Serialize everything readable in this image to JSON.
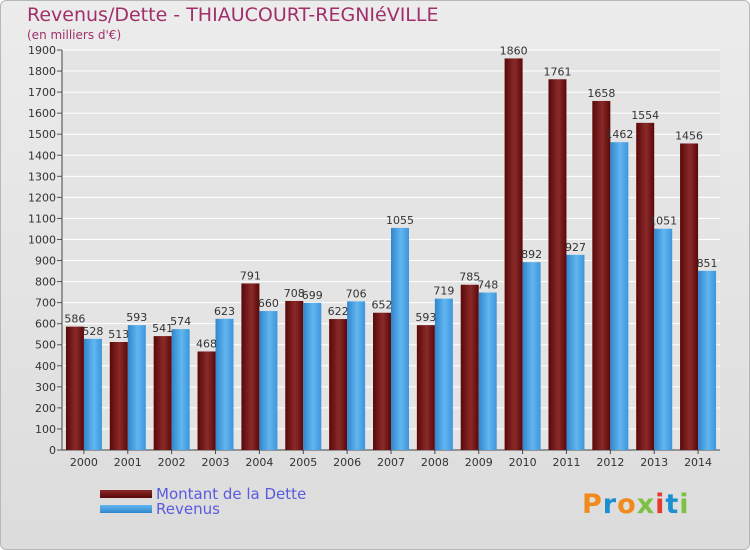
{
  "chart_data": {
    "type": "bar",
    "title": "Revenus/Dette - THIAUCOURT-REGNIéVILLE",
    "subtitle": "(en milliers d'€)",
    "categories": [
      "2000",
      "2001",
      "2002",
      "2003",
      "2004",
      "2005",
      "2006",
      "2007",
      "2008",
      "2009",
      "2010",
      "2011",
      "2012",
      "2013",
      "2014"
    ],
    "series": [
      {
        "name": "Montant de la Dette",
        "color": "#7a1010",
        "values": [
          586,
          513,
          541,
          468,
          791,
          708,
          622,
          652,
          593,
          785,
          1860,
          1761,
          1658,
          1554,
          1456
        ]
      },
      {
        "name": "Revenus",
        "color": "#4aa6e8",
        "values": [
          528,
          593,
          574,
          623,
          660,
          699,
          706,
          1055,
          719,
          748,
          892,
          927,
          1462,
          1051,
          851
        ]
      }
    ],
    "ylim": [
      0,
      1900
    ],
    "yticks": [
      0,
      100,
      200,
      300,
      400,
      500,
      600,
      700,
      800,
      900,
      1000,
      1100,
      1200,
      1300,
      1400,
      1500,
      1600,
      1700,
      1800,
      1900
    ],
    "grid": true,
    "legend_position": "bottom-left"
  },
  "logo": {
    "text": "Proxiti",
    "colors": [
      "#f08a1c",
      "#1b8fd0",
      "#f08a1c",
      "#7cc242",
      "#e63a2e",
      "#1b8fd0",
      "#7cc242"
    ]
  }
}
